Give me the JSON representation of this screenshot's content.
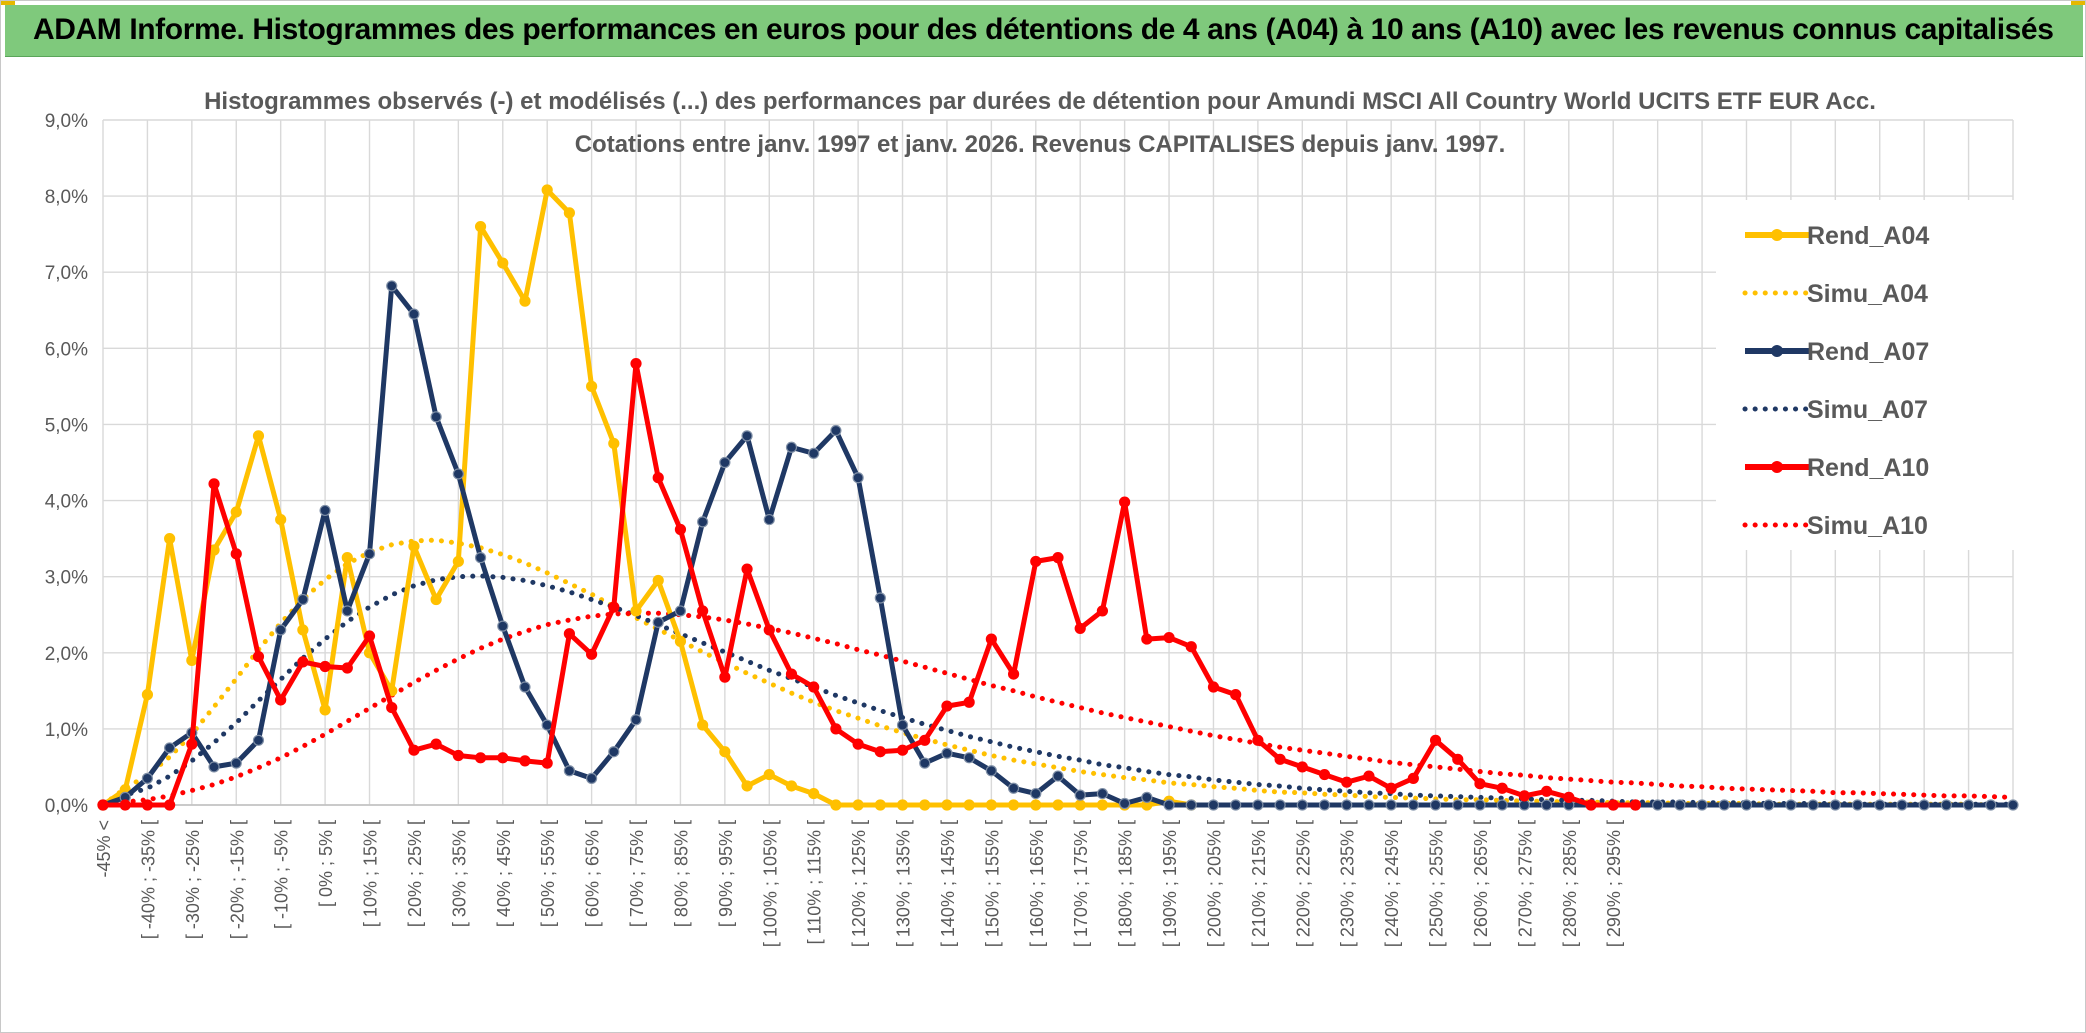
{
  "banner": {
    "title": "ADAM Informe. Histogrammes des performances en euros pour des détentions de 4 ans (A04) à 10 ans (A10) avec les revenus connus capitalisés"
  },
  "chart_data": {
    "type": "line",
    "title_line1": "Histogrammes observés (-) et modélisés (...) des performances par durées de détention pour Amundi MSCI All Country World UCITS ETF EUR Acc.",
    "title_line2": "Cotations entre janv. 1997 et janv. 2026. Revenus CAPITALISES depuis janv. 1997.",
    "ylim": [
      0,
      9
    ],
    "y_ticks": [
      "0,0%",
      "1,0%",
      "2,0%",
      "3,0%",
      "4,0%",
      "5,0%",
      "6,0%",
      "7,0%",
      "8,0%",
      "9,0%"
    ],
    "x_tick_labels": [
      "-45% <",
      "[ -40% ; -35% [",
      "[ -30% ; -25% [",
      "[ -20% ; -15% [",
      "[ -10% ; -5% [",
      "[ 0% ; 5% [",
      "[ 10% ; 15% [",
      "[ 20% ; 25% [",
      "[ 30% ; 35% [",
      "[ 40% ; 45% [",
      "[ 50% ; 55% [",
      "[ 60% ; 65% [",
      "[ 70% ; 75% [",
      "[ 80% ; 85% [",
      "[ 90% ; 95% [",
      "[ 100% ; 105% [",
      "[ 110% ; 115% [",
      "[ 120% ; 125% [",
      "[ 130% ; 135% [",
      "[ 140% ; 145% [",
      "[ 150% ; 155% [",
      "[ 160% ; 165% [",
      "[ 170% ; 175% [",
      "[ 180% ; 185% [",
      "[ 190% ; 195% [",
      "[ 200% ; 205% [",
      "[ 210% ; 215% [",
      "[ 220% ; 225% [",
      "[ 230% ; 235% [",
      "[ 240% ; 245% [",
      "[ 250% ; 255% [",
      "[ 260% ; 265% [",
      "[ 270% ; 275% [",
      "[ 280% ; 285% [",
      "[ 290% ; 295% ["
    ],
    "legend_position": "right",
    "grid": true,
    "series": [
      {
        "name": "Rend_A04",
        "style": "solid",
        "color": "#ffc000",
        "marker": true,
        "values": [
          0,
          0.2,
          1.45,
          3.5,
          1.9,
          3.35,
          3.85,
          4.85,
          3.75,
          2.3,
          1.25,
          3.25,
          2.0,
          1.5,
          3.4,
          2.7,
          3.2,
          7.6,
          7.12,
          6.62,
          8.08,
          7.78,
          5.5,
          4.75,
          2.55,
          2.95,
          2.15,
          1.05,
          0.7,
          0.25,
          0.4,
          0.25,
          0.15,
          0,
          0,
          0,
          0,
          0,
          0,
          0,
          0,
          0,
          0,
          0,
          0,
          0,
          0,
          0,
          0.05,
          0
        ]
      },
      {
        "name": "Simu_A04",
        "style": "dotted",
        "color": "#ffc000",
        "marker": false,
        "values": [
          0,
          0.22,
          0.39,
          0.63,
          0.93,
          1.29,
          1.66,
          2.04,
          2.39,
          2.7,
          2.96,
          3.17,
          3.32,
          3.42,
          3.47,
          3.48,
          3.44,
          3.38,
          3.29,
          3.18,
          3.05,
          2.91,
          2.77,
          2.61,
          2.46,
          2.31,
          2.16,
          2.01,
          1.87,
          1.73,
          1.6,
          1.47,
          1.35,
          1.24,
          1.14,
          1.04,
          0.95,
          0.87,
          0.79,
          0.72,
          0.65,
          0.59,
          0.54,
          0.49,
          0.44,
          0.4,
          0.36,
          0.33,
          0.29,
          0.27,
          0.24,
          0.22,
          0.19,
          0.17,
          0.16,
          0.14,
          0.13,
          0.11,
          0.1,
          0.09,
          0.08,
          0.07,
          0.07,
          0.06,
          0.05,
          0.05,
          0.04,
          0.04,
          0.03,
          0.03,
          0.03,
          0.02,
          0.02,
          0.02,
          0.02,
          0.01,
          0.01,
          0.01,
          0.01,
          0.01,
          0.01,
          0.01,
          0.01,
          0.01,
          0.01,
          0,
          0
        ]
      },
      {
        "name": "Rend_A07",
        "style": "solid",
        "color": "#1f3864",
        "marker": true,
        "values": [
          0,
          0.1,
          0.35,
          0.75,
          0.95,
          0.5,
          0.55,
          0.85,
          2.3,
          2.7,
          3.87,
          2.55,
          3.3,
          6.82,
          6.45,
          5.1,
          4.35,
          3.25,
          2.35,
          1.55,
          1.05,
          0.45,
          0.35,
          0.7,
          1.12,
          2.4,
          2.55,
          3.72,
          4.5,
          4.85,
          3.75,
          4.7,
          4.62,
          4.92,
          4.3,
          2.72,
          1.05,
          0.55,
          0.68,
          0.62,
          0.45,
          0.22,
          0.15,
          0.38,
          0.13,
          0.15,
          0.02,
          0.1,
          0,
          0,
          0,
          0,
          0,
          0,
          0,
          0,
          0,
          0,
          0,
          0,
          0,
          0,
          0,
          0,
          0,
          0,
          0,
          0,
          0,
          0,
          0,
          0,
          0,
          0,
          0,
          0,
          0,
          0,
          0,
          0,
          0,
          0,
          0,
          0,
          0,
          0,
          0
        ]
      },
      {
        "name": "Simu_A07",
        "style": "dotted",
        "color": "#1f3864",
        "marker": false,
        "values": [
          0,
          0.13,
          0.22,
          0.38,
          0.58,
          0.82,
          1.08,
          1.37,
          1.65,
          1.93,
          2.18,
          2.41,
          2.6,
          2.76,
          2.88,
          2.96,
          3.0,
          3.01,
          2.99,
          2.95,
          2.88,
          2.8,
          2.7,
          2.6,
          2.49,
          2.37,
          2.25,
          2.13,
          2.01,
          1.89,
          1.77,
          1.66,
          1.55,
          1.44,
          1.34,
          1.24,
          1.15,
          1.06,
          0.98,
          0.9,
          0.83,
          0.76,
          0.7,
          0.64,
          0.59,
          0.53,
          0.49,
          0.44,
          0.4,
          0.37,
          0.33,
          0.3,
          0.27,
          0.25,
          0.22,
          0.2,
          0.18,
          0.16,
          0.15,
          0.13,
          0.12,
          0.11,
          0.1,
          0.09,
          0.08,
          0.07,
          0.06,
          0.06,
          0.05,
          0.04,
          0.04,
          0.04,
          0.03,
          0.03,
          0.03,
          0.02,
          0.02,
          0.02,
          0.02,
          0.01,
          0.01,
          0.01,
          0.01,
          0.01,
          0.01,
          0.01,
          0.01
        ]
      },
      {
        "name": "Rend_A10",
        "style": "solid",
        "color": "#ff0000",
        "marker": true,
        "values": [
          0,
          0,
          0,
          0,
          0.8,
          4.22,
          3.3,
          1.95,
          1.38,
          1.88,
          1.82,
          1.8,
          2.22,
          1.28,
          0.72,
          0.8,
          0.65,
          0.62,
          0.62,
          0.58,
          0.55,
          2.25,
          1.98,
          2.6,
          5.8,
          4.3,
          3.62,
          2.55,
          1.68,
          3.1,
          2.3,
          1.72,
          1.55,
          1.0,
          0.8,
          0.7,
          0.72,
          0.85,
          1.3,
          1.35,
          2.18,
          1.72,
          3.2,
          3.25,
          2.32,
          2.55,
          3.98,
          2.18,
          2.2,
          2.08,
          1.55,
          1.45,
          0.85,
          0.6,
          0.5,
          0.4,
          0.3,
          0.38,
          0.22,
          0.35,
          0.85,
          0.6,
          0.28,
          0.22,
          0.12,
          0.18,
          0.1,
          0,
          0,
          0
        ]
      },
      {
        "name": "Simu_A10",
        "style": "dotted",
        "color": "#ff0000",
        "marker": false,
        "values": [
          0,
          0.04,
          0.07,
          0.12,
          0.19,
          0.27,
          0.37,
          0.49,
          0.62,
          0.77,
          0.93,
          1.1,
          1.27,
          1.44,
          1.61,
          1.77,
          1.92,
          2.06,
          2.18,
          2.28,
          2.37,
          2.43,
          2.48,
          2.51,
          2.52,
          2.52,
          2.5,
          2.47,
          2.43,
          2.38,
          2.32,
          2.26,
          2.19,
          2.12,
          2.04,
          1.97,
          1.89,
          1.81,
          1.73,
          1.65,
          1.57,
          1.5,
          1.42,
          1.35,
          1.28,
          1.21,
          1.15,
          1.09,
          1.03,
          0.97,
          0.91,
          0.86,
          0.81,
          0.76,
          0.72,
          0.68,
          0.64,
          0.6,
          0.56,
          0.53,
          0.5,
          0.47,
          0.44,
          0.41,
          0.39,
          0.36,
          0.34,
          0.32,
          0.3,
          0.29,
          0.27,
          0.25,
          0.24,
          0.22,
          0.21,
          0.2,
          0.19,
          0.18,
          0.16,
          0.16,
          0.15,
          0.14,
          0.13,
          0.12,
          0.12,
          0.11,
          0.1
        ]
      }
    ]
  }
}
